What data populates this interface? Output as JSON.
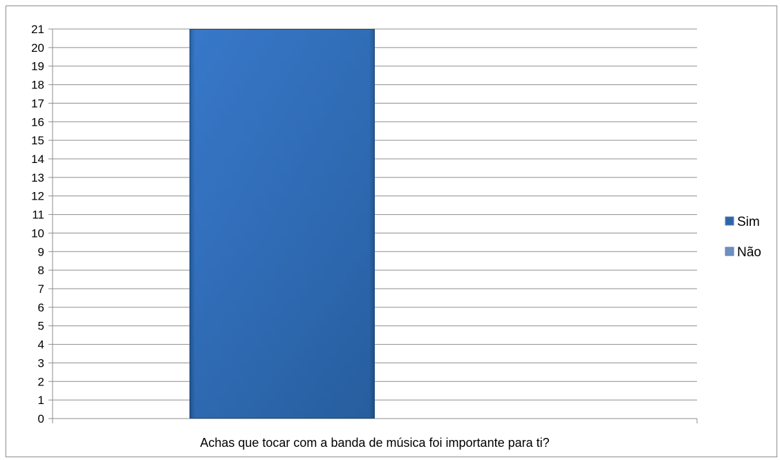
{
  "chart_data": {
    "type": "bar",
    "categories": [
      "Achas que tocar com a banda de música foi importante para ti?"
    ],
    "series": [
      {
        "name": "Sim",
        "values": [
          21
        ],
        "color": "#2f66aa"
      },
      {
        "name": "Não",
        "values": [
          0
        ],
        "color": "#6f8fbf"
      }
    ],
    "ylim": [
      0,
      21
    ],
    "yticks": [
      0,
      1,
      2,
      3,
      4,
      5,
      6,
      7,
      8,
      9,
      10,
      11,
      12,
      13,
      14,
      15,
      16,
      17,
      18,
      19,
      20,
      21
    ],
    "grid": true,
    "legend_position": "right"
  }
}
